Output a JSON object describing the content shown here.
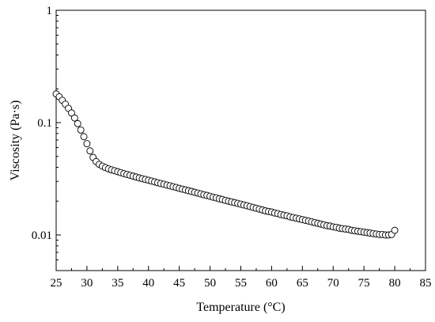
{
  "chart_data": {
    "type": "scatter",
    "title": "",
    "xlabel": "Temperature (°C)",
    "ylabel": "Viscosity (Pa·s)",
    "xlim": [
      25,
      85
    ],
    "ylim": [
      0.005,
      1
    ],
    "y_scale": "log",
    "grid": false,
    "legend": "none",
    "marker": "open-circle",
    "x_ticks": [
      {
        "value": 25,
        "label": "25"
      },
      {
        "value": 30,
        "label": "30"
      },
      {
        "value": 35,
        "label": "35"
      },
      {
        "value": 40,
        "label": "40"
      },
      {
        "value": 45,
        "label": "45"
      },
      {
        "value": 50,
        "label": "50"
      },
      {
        "value": 55,
        "label": "55"
      },
      {
        "value": 60,
        "label": "60"
      },
      {
        "value": 65,
        "label": "65"
      },
      {
        "value": 70,
        "label": "70"
      },
      {
        "value": 75,
        "label": "75"
      },
      {
        "value": 80,
        "label": "80"
      },
      {
        "value": 85,
        "label": "85"
      }
    ],
    "y_ticks": [
      {
        "value": 0.01,
        "label": "0.01"
      },
      {
        "value": 0.1,
        "label": "0.1"
      },
      {
        "value": 1,
        "label": "1"
      }
    ],
    "series": [
      {
        "x": [
          25.0,
          25.5,
          26.0,
          26.5,
          27.0,
          27.5,
          28.0,
          28.5,
          29.0,
          29.5,
          30.0,
          30.5,
          31.0,
          31.5,
          32.0,
          32.5,
          33.0,
          33.5,
          34.0,
          34.5,
          35.0,
          35.5,
          36.0,
          36.5,
          37.0,
          37.5,
          38.0,
          38.5,
          39.0,
          39.5,
          40.0,
          40.5,
          41.0,
          41.5,
          42.0,
          42.5,
          43.0,
          43.5,
          44.0,
          44.5,
          45.0,
          45.5,
          46.0,
          46.5,
          47.0,
          47.5,
          48.0,
          48.5,
          49.0,
          49.5,
          50.0,
          50.5,
          51.0,
          51.5,
          52.0,
          52.5,
          53.0,
          53.5,
          54.0,
          54.5,
          55.0,
          55.5,
          56.0,
          56.5,
          57.0,
          57.5,
          58.0,
          58.5,
          59.0,
          59.5,
          60.0,
          60.5,
          61.0,
          61.5,
          62.0,
          62.5,
          63.0,
          63.5,
          64.0,
          64.5,
          65.0,
          65.5,
          66.0,
          66.5,
          67.0,
          67.5,
          68.0,
          68.5,
          69.0,
          69.5,
          70.0,
          70.5,
          71.0,
          71.5,
          72.0,
          72.5,
          73.0,
          73.5,
          74.0,
          74.5,
          75.0,
          75.5,
          76.0,
          76.5,
          77.0,
          77.5,
          78.0,
          78.5,
          79.0,
          79.5,
          80.0
        ],
        "y": [
          0.18,
          0.17,
          0.158,
          0.146,
          0.134,
          0.122,
          0.11,
          0.098,
          0.086,
          0.075,
          0.065,
          0.056,
          0.049,
          0.045,
          0.0425,
          0.041,
          0.0398,
          0.0388,
          0.038,
          0.0373,
          0.0366,
          0.0359,
          0.0352,
          0.0346,
          0.034,
          0.0334,
          0.0328,
          0.0322,
          0.0317,
          0.0312,
          0.0307,
          0.0302,
          0.0297,
          0.0292,
          0.0287,
          0.0283,
          0.0278,
          0.0274,
          0.0269,
          0.0265,
          0.026,
          0.0256,
          0.0252,
          0.0248,
          0.0244,
          0.024,
          0.0236,
          0.0232,
          0.0228,
          0.0225,
          0.0221,
          0.0217,
          0.0214,
          0.021,
          0.0207,
          0.0203,
          0.02,
          0.0197,
          0.0194,
          0.0191,
          0.0188,
          0.0185,
          0.0182,
          0.0179,
          0.0176,
          0.0173,
          0.017,
          0.0167,
          0.0164,
          0.0162,
          0.016,
          0.0157,
          0.0155,
          0.0152,
          0.015,
          0.0148,
          0.0145,
          0.0143,
          0.0141,
          0.0139,
          0.0137,
          0.0135,
          0.0133,
          0.0131,
          0.0129,
          0.0127,
          0.0125,
          0.0123,
          0.0121,
          0.012,
          0.0118,
          0.0117,
          0.0115,
          0.0114,
          0.0113,
          0.0112,
          0.011,
          0.0109,
          0.0108,
          0.0107,
          0.0106,
          0.0105,
          0.0104,
          0.0103,
          0.0102,
          0.0101,
          0.0101,
          0.01,
          0.01,
          0.0101,
          0.011
        ]
      }
    ]
  }
}
